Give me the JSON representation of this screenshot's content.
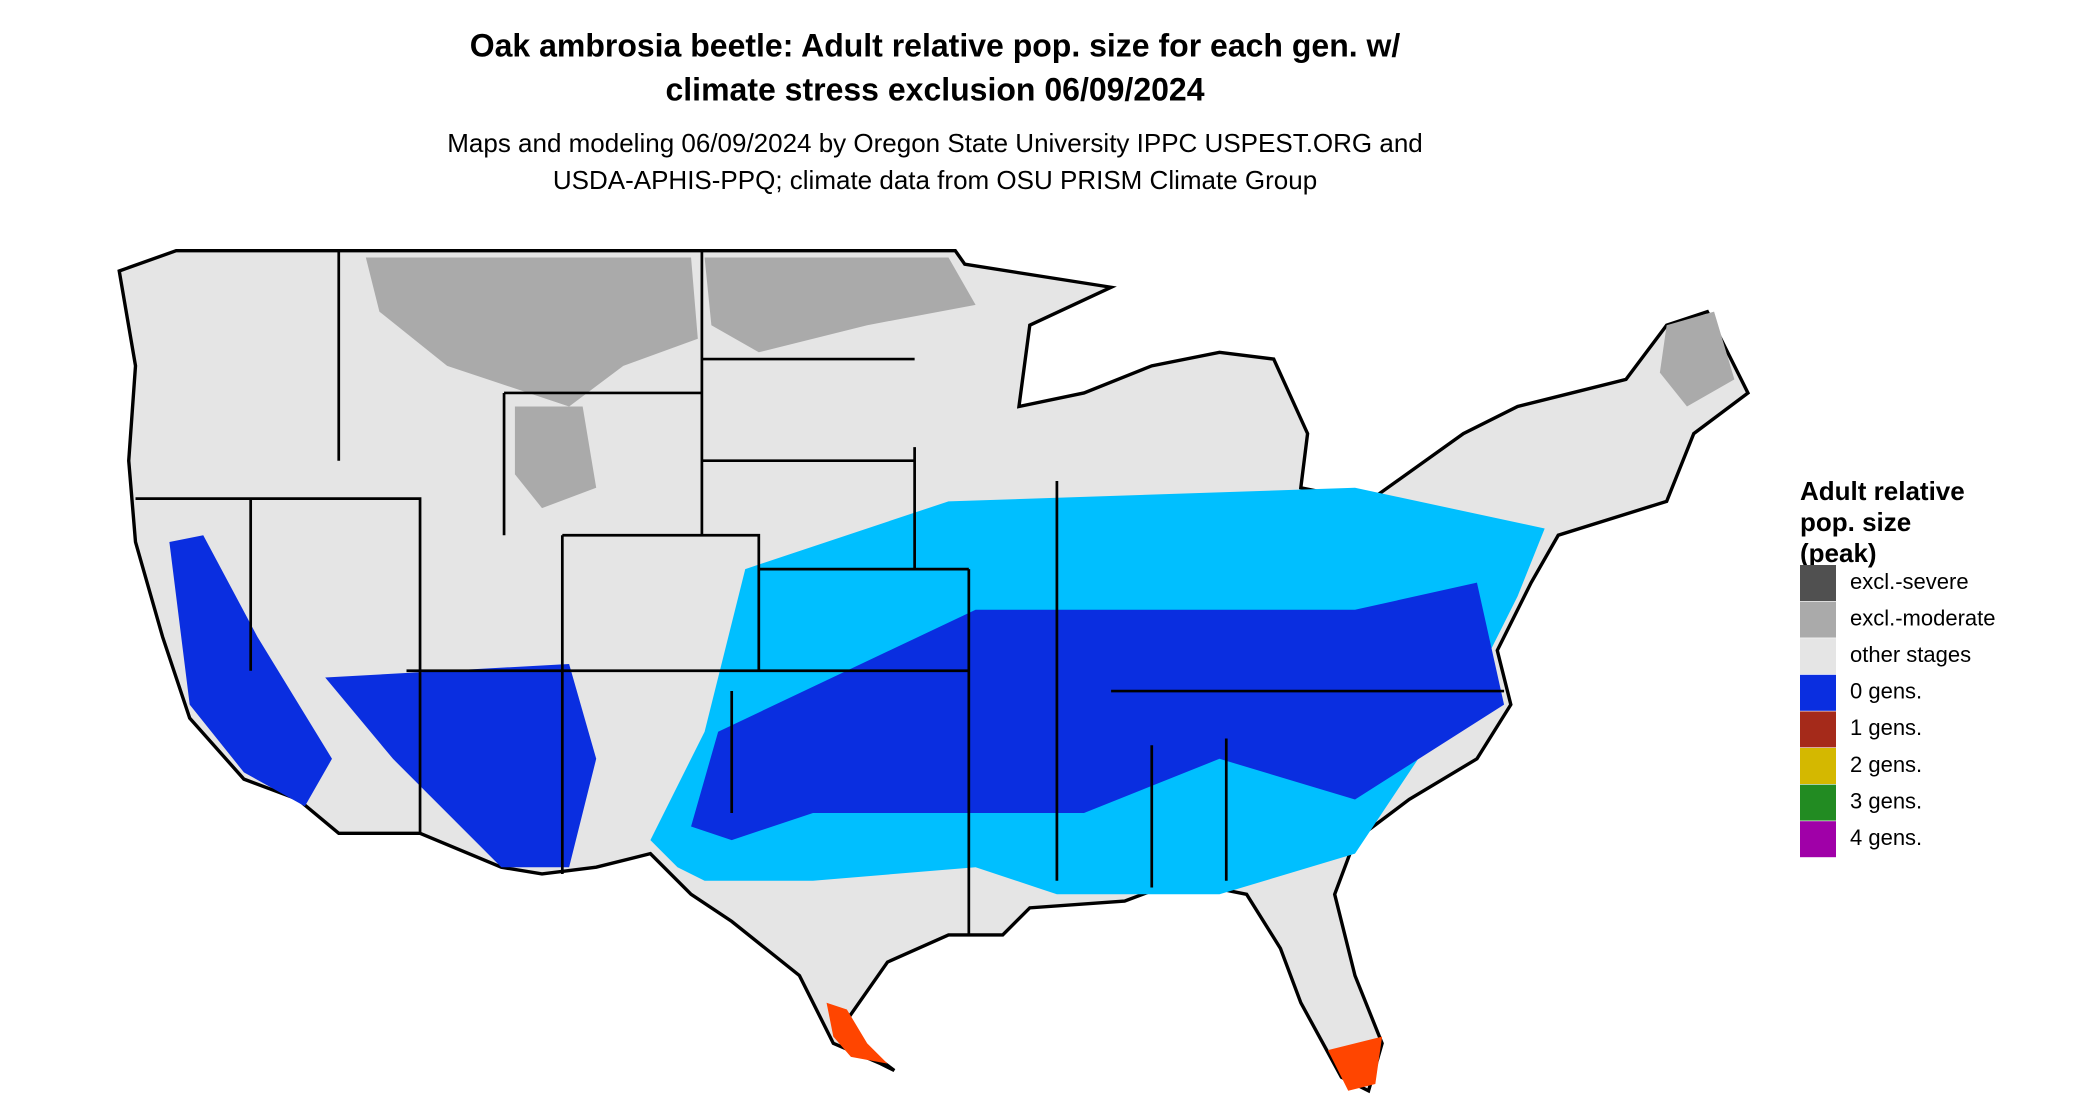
{
  "title": [
    "Oak ambrosia beetle: Adult relative pop. size for each gen. w/",
    "climate stress exclusion 06/09/2024"
  ],
  "subtitle": [
    "Maps and modeling 06/09/2024 by Oregon State University IPPC USPEST.ORG and",
    "USDA-APHIS-PPQ; climate data from OSU PRISM Climate Group"
  ],
  "legend": {
    "title": [
      "Adult relative",
      "pop. size",
      "(peak)"
    ],
    "items": [
      {
        "label": "excl.-severe",
        "color": "#505050"
      },
      {
        "label": "excl.-moderate",
        "color": "#aaaaaa"
      },
      {
        "label": "other stages",
        "color": "#e5e5e5"
      },
      {
        "label": "0 gens.",
        "color": "#0a2ee0"
      },
      {
        "label": "1 gens.",
        "color": "#a52a1a"
      },
      {
        "label": "2 gens.",
        "color": "#d4b800"
      },
      {
        "label": "3 gens.",
        "color": "#228b22"
      },
      {
        "label": "4 gens.",
        "color": "#a000a8"
      }
    ]
  }
}
